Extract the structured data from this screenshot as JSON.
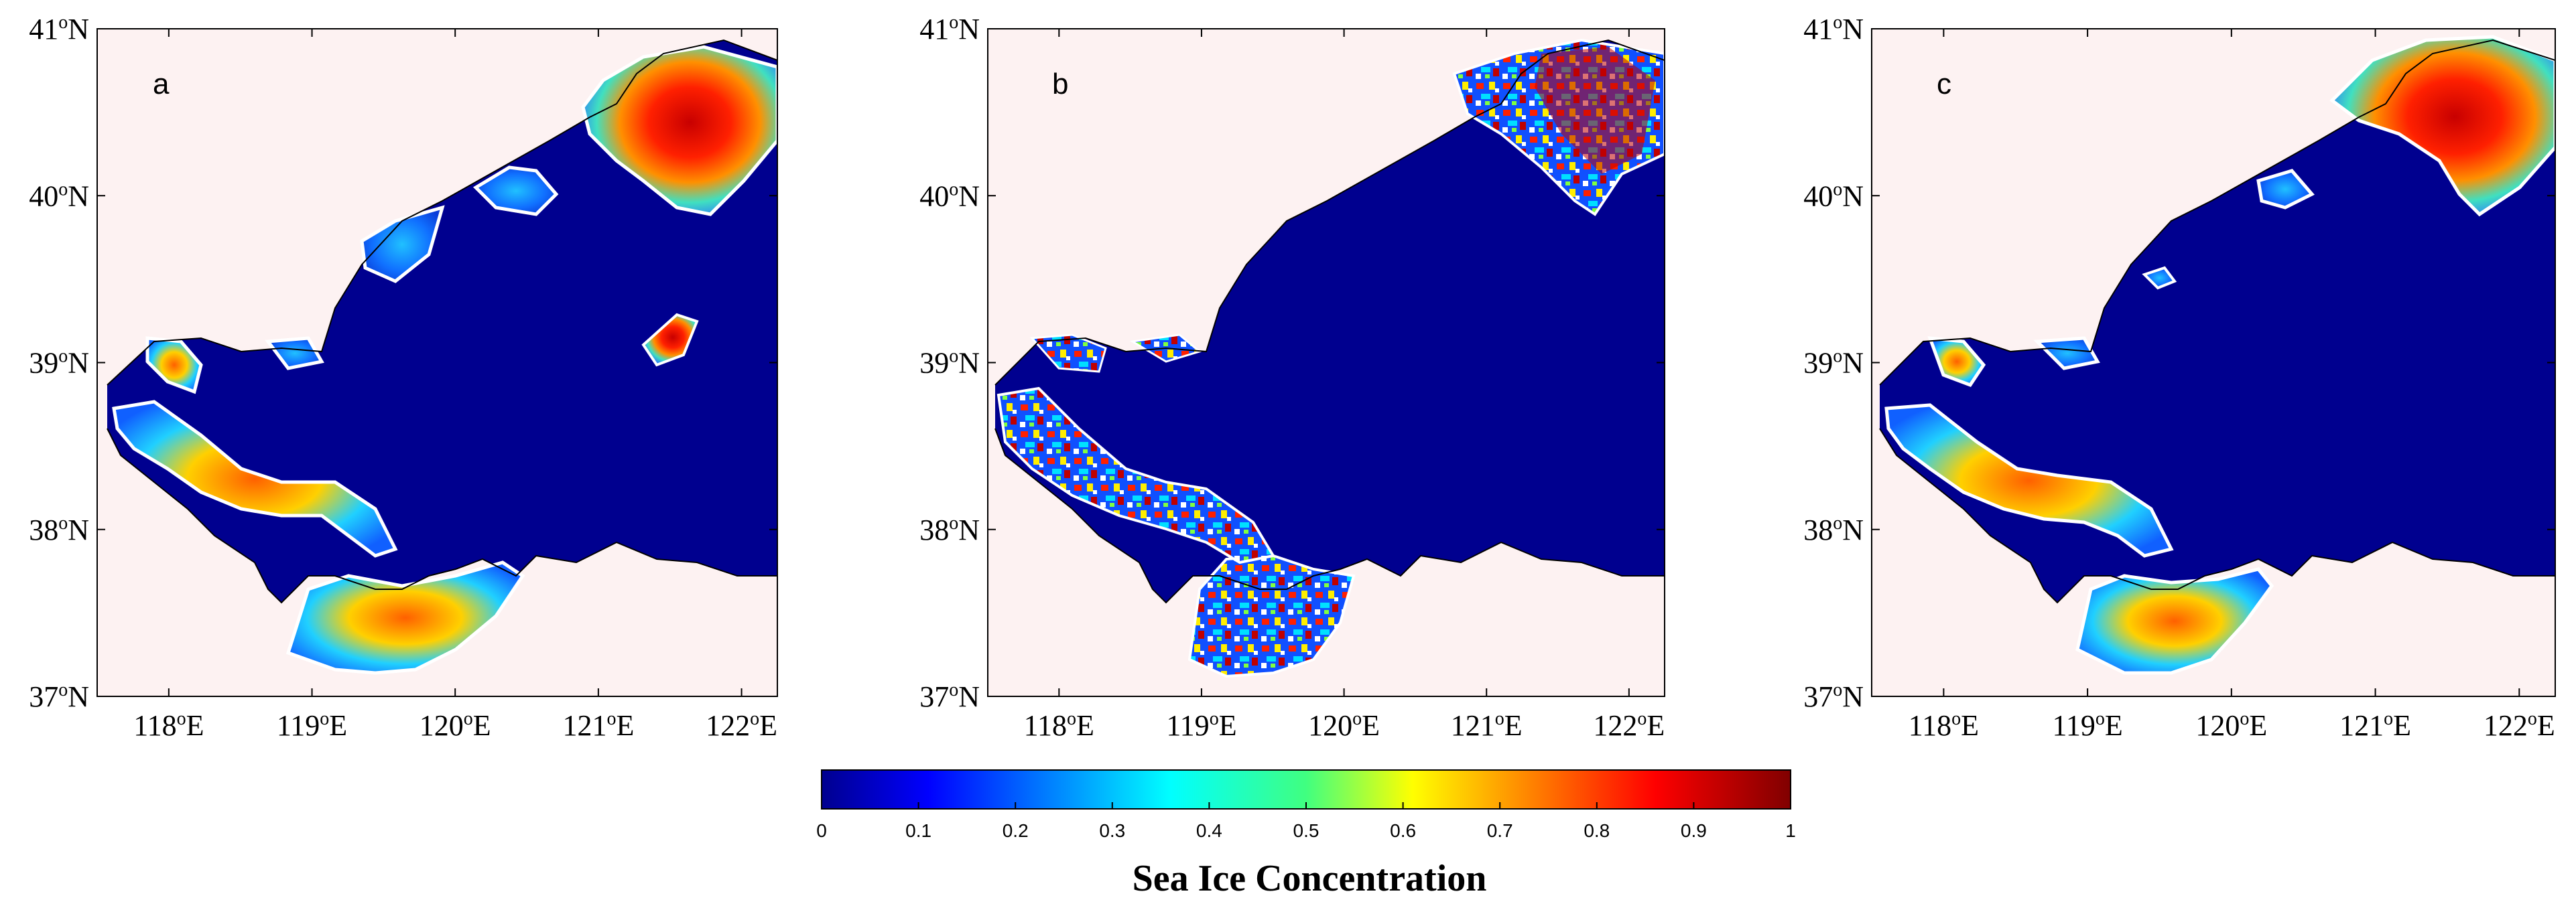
{
  "colors": {
    "land": "#fdf2f2",
    "open_water": "#00008f",
    "ice_edge_line": "#ffffff",
    "coastline": "#000000"
  },
  "map": {
    "lon_range": [
      117.5,
      122.25
    ],
    "lat_range": [
      37,
      41
    ],
    "lat_ticks": [
      {
        "value": 37,
        "label": "37",
        "suffix": "N"
      },
      {
        "value": 38,
        "label": "38",
        "suffix": "N"
      },
      {
        "value": 39,
        "label": "39",
        "suffix": "N"
      },
      {
        "value": 40,
        "label": "40",
        "suffix": "N"
      },
      {
        "value": 41,
        "label": "41",
        "suffix": "N"
      }
    ],
    "lon_ticks": [
      {
        "value": 118,
        "label": "118",
        "suffix": "E"
      },
      {
        "value": 119,
        "label": "119",
        "suffix": "E"
      },
      {
        "value": 120,
        "label": "120",
        "suffix": "E"
      },
      {
        "value": 121,
        "label": "121",
        "suffix": "E"
      },
      {
        "value": 122,
        "label": "122",
        "suffix": "E"
      }
    ],
    "degree_symbol": "o"
  },
  "panels": [
    {
      "id": "a",
      "label": "a"
    },
    {
      "id": "b",
      "label": "b"
    },
    {
      "id": "c",
      "label": "c"
    }
  ],
  "colorbar": {
    "title": "Sea Ice Concentration",
    "min": 0,
    "max": 1,
    "ticks": [
      {
        "value": 0,
        "label": "0"
      },
      {
        "value": 0.1,
        "label": "0.1"
      },
      {
        "value": 0.2,
        "label": "0.2"
      },
      {
        "value": 0.3,
        "label": "0.3"
      },
      {
        "value": 0.4,
        "label": "0.4"
      },
      {
        "value": 0.5,
        "label": "0.5"
      },
      {
        "value": 0.6,
        "label": "0.6"
      },
      {
        "value": 0.7,
        "label": "0.7"
      },
      {
        "value": 0.8,
        "label": "0.8"
      },
      {
        "value": 0.9,
        "label": "0.9"
      },
      {
        "value": 1,
        "label": "1"
      }
    ],
    "colormap": "jet"
  }
}
